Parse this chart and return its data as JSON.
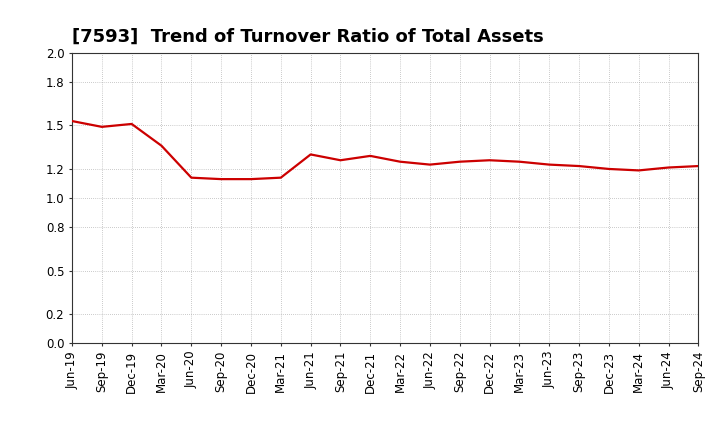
{
  "title": "[7593]  Trend of Turnover Ratio of Total Assets",
  "x_labels": [
    "Jun-19",
    "Sep-19",
    "Dec-19",
    "Mar-20",
    "Jun-20",
    "Sep-20",
    "Dec-20",
    "Mar-21",
    "Jun-21",
    "Sep-21",
    "Dec-21",
    "Mar-22",
    "Jun-22",
    "Sep-22",
    "Dec-22",
    "Mar-23",
    "Jun-23",
    "Sep-23",
    "Dec-23",
    "Mar-24",
    "Jun-24",
    "Sep-24"
  ],
  "values": [
    1.53,
    1.49,
    1.51,
    1.36,
    1.14,
    1.13,
    1.13,
    1.14,
    1.3,
    1.26,
    1.29,
    1.25,
    1.23,
    1.25,
    1.26,
    1.25,
    1.23,
    1.22,
    1.2,
    1.19,
    1.21,
    1.22
  ],
  "line_color": "#cc0000",
  "line_width": 1.6,
  "ylim": [
    0.0,
    2.0
  ],
  "yticks": [
    0.0,
    0.2,
    0.5,
    0.8,
    1.0,
    1.2,
    1.5,
    1.8,
    2.0
  ],
  "grid_color": "#999999",
  "bg_color": "#ffffff",
  "title_fontsize": 13,
  "tick_fontsize": 8.5
}
